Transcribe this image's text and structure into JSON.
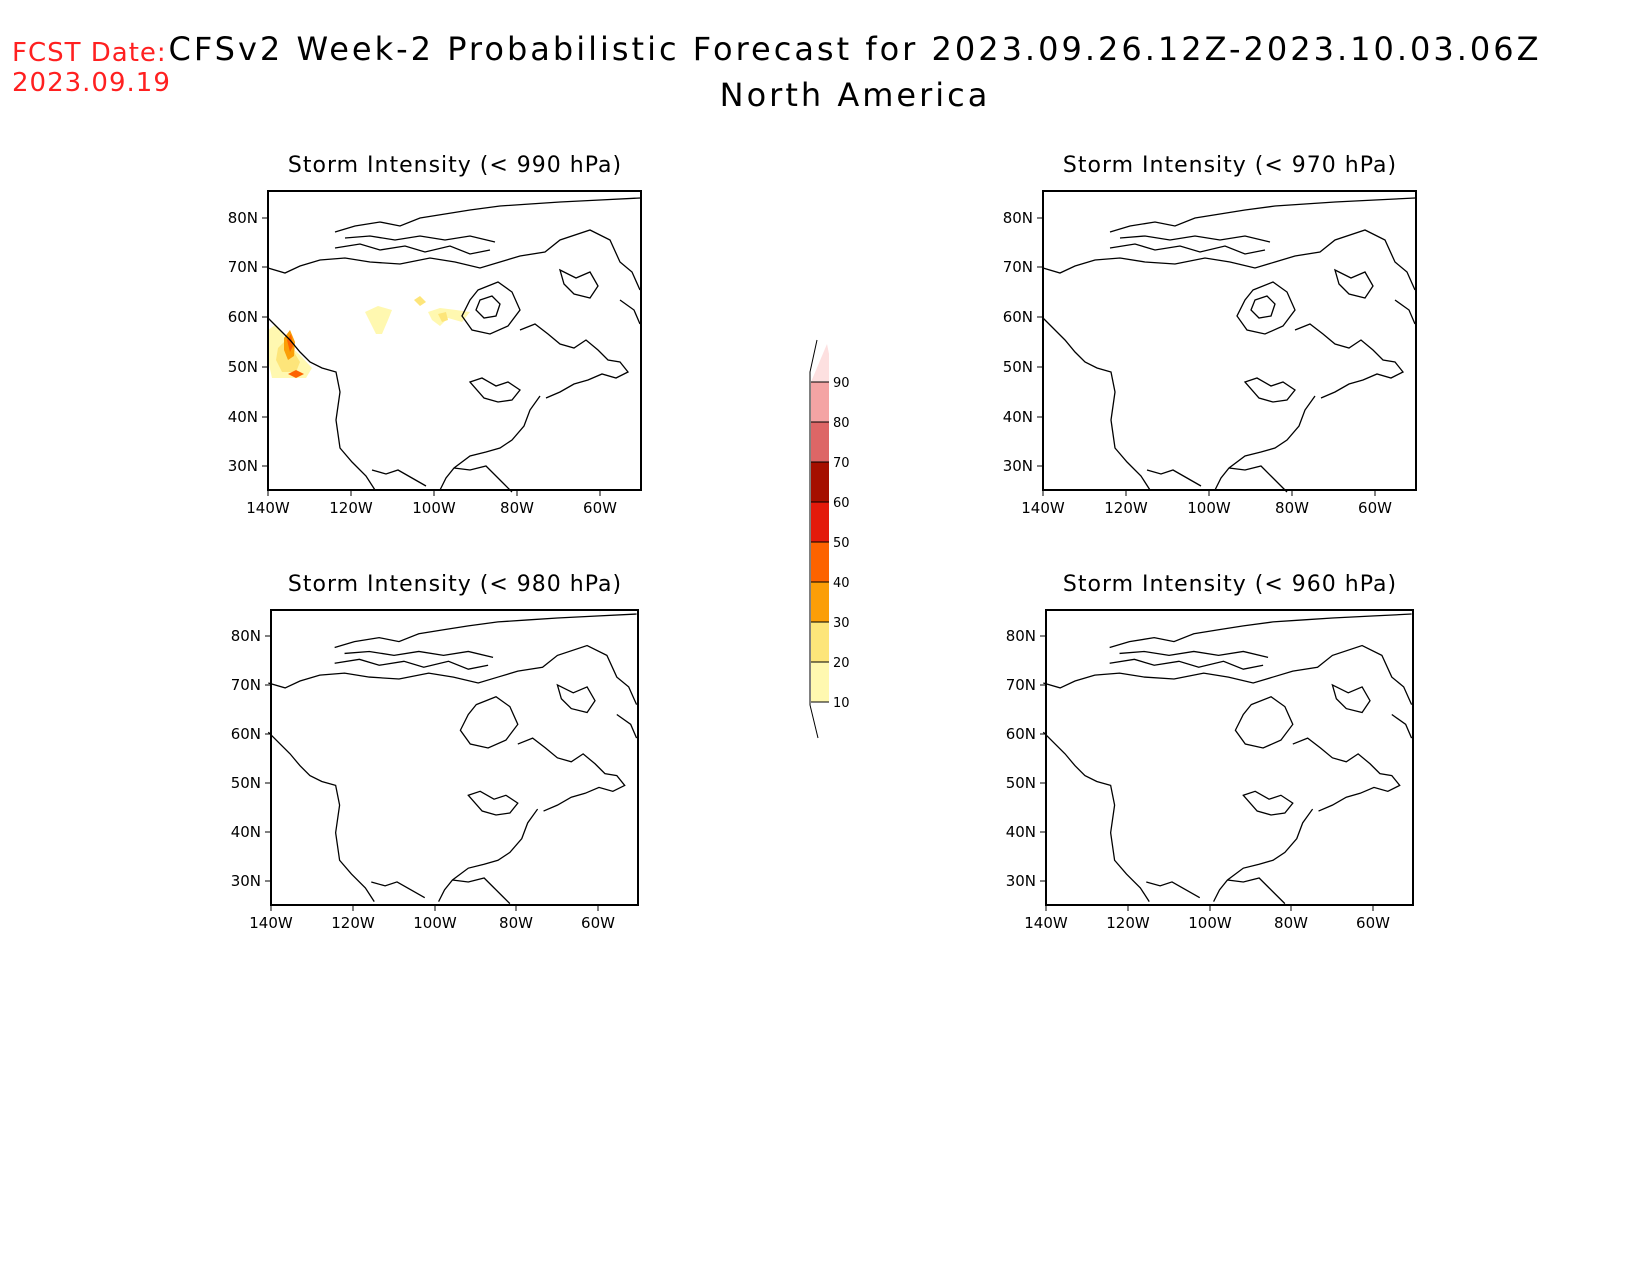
{
  "header": {
    "fcst_label": "FCST Date:",
    "fcst_date": "2023.09.19",
    "title_line1": "CFSv2 Week-2 Probabilistic Forecast for 2023.09.26.12Z-2023.10.03.06Z",
    "title_line2": "North America"
  },
  "panels": [
    {
      "title": "Storm Intensity (< 990 hPa)",
      "has_data": true
    },
    {
      "title": "Storm Intensity (< 970 hPa)",
      "has_data": false
    },
    {
      "title": "Storm Intensity (< 980 hPa)",
      "has_data": false
    },
    {
      "title": "Storm Intensity (< 960 hPa)",
      "has_data": false
    }
  ],
  "axes": {
    "lon_labels": [
      "140W",
      "120W",
      "100W",
      "80W",
      "60W"
    ],
    "lat_labels": [
      "80N",
      "70N",
      "60N",
      "50N",
      "40N",
      "30N"
    ]
  },
  "colorbar": {
    "levels": [
      "10",
      "20",
      "30",
      "40",
      "50",
      "60",
      "70",
      "80",
      "90"
    ],
    "colors": [
      "#fff8b0",
      "#fde57a",
      "#fb9e07",
      "#fd6300",
      "#e31a0b",
      "#a50f00",
      "#dd6666",
      "#f4a4a4",
      "#fde0e0"
    ]
  },
  "chart_data": {
    "type": "heatmap",
    "units": "probability (%)",
    "region": "North America",
    "lon_range": [
      -140,
      -50
    ],
    "lat_range": [
      25,
      85
    ],
    "panels": [
      {
        "title": "Storm Intensity (< 990 hPa)",
        "probability_areas": [
          {
            "lon": -138,
            "lat": 52,
            "level": "10-20"
          },
          {
            "lon": -135,
            "lat": 54,
            "level": "30-40"
          },
          {
            "lon": -134,
            "lat": 49,
            "level": "40-50"
          },
          {
            "lon": -113,
            "lat": 59,
            "level": "10-20"
          },
          {
            "lon": -103,
            "lat": 62,
            "level": "10-20"
          },
          {
            "lon": -98,
            "lat": 60,
            "level": "10-20"
          }
        ]
      },
      {
        "title": "Storm Intensity (< 970 hPa)",
        "probability_areas": []
      },
      {
        "title": "Storm Intensity (< 980 hPa)",
        "probability_areas": []
      },
      {
        "title": "Storm Intensity (< 960 hPa)",
        "probability_areas": []
      }
    ]
  }
}
